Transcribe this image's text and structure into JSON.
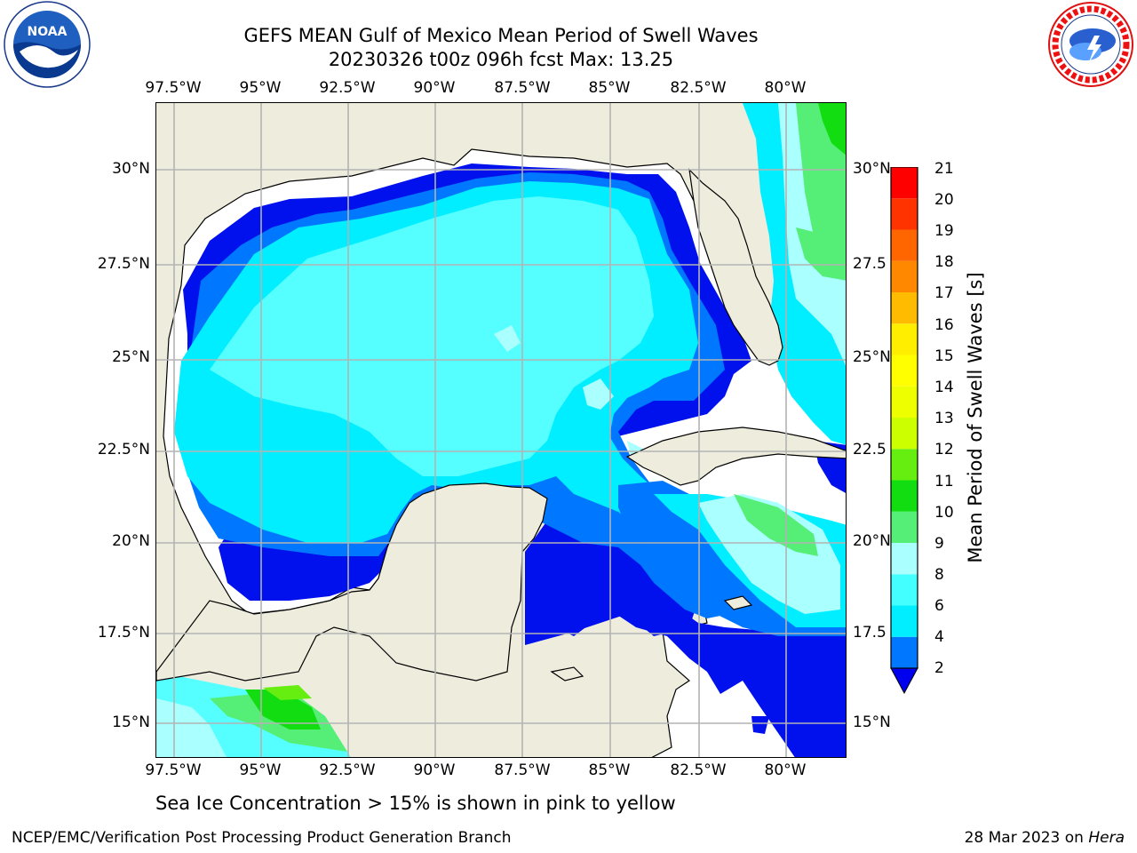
{
  "header": {
    "title": "GEFS MEAN Gulf of Mexico Mean Period of Swell Waves",
    "subtitle": "20230326 t00z 096h fcst   Max: 13.25"
  },
  "logos": {
    "left": {
      "text": "NOAA",
      "icon": "noaa-logo-icon",
      "ring_text": "NATIONAL OCEANIC AND ATMOSPHERIC ADMINISTRATION · U.S. DEPARTMENT OF COMMERCE"
    },
    "right": {
      "icon": "nws-logo-icon",
      "ring_text": "NATIONAL WEATHER SERVICE"
    }
  },
  "map": {
    "longitude_ticks": [
      "97.5°W",
      "95°W",
      "92.5°W",
      "90°W",
      "87.5°W",
      "85°W",
      "82.5°W",
      "80°W"
    ],
    "latitude_ticks_left": [
      "30°N",
      "27.5°N",
      "25°N",
      "22.5°N",
      "20°N",
      "17.5°N",
      "15°N"
    ],
    "latitude_ticks_right": [
      "30°N",
      "27.5",
      "25°N",
      "22.5",
      "20°N",
      "17.5",
      "15°N"
    ],
    "gridlines": true,
    "colors": {
      "land": "#eeecdc",
      "ocean_no_data": "#ffffff",
      "grid": "#b3b3b3",
      "coastline": "#000000"
    }
  },
  "colorbar": {
    "title": "Mean Period of Swell Waves [s]",
    "tick_labels": [
      "21",
      "20",
      "19",
      "18",
      "17",
      "16",
      "15",
      "14",
      "13",
      "12",
      "11",
      "10",
      "9",
      "8",
      "6",
      "4",
      "2"
    ],
    "bins": [
      {
        "from": 2,
        "to": 4,
        "color": "#0077ff"
      },
      {
        "from": 4,
        "to": 6,
        "color": "#00eeff"
      },
      {
        "from": 6,
        "to": 8,
        "color": "#44ffff"
      },
      {
        "from": 8,
        "to": 9,
        "color": "#aaffff"
      },
      {
        "from": 9,
        "to": 10,
        "color": "#55ee77"
      },
      {
        "from": 10,
        "to": 11,
        "color": "#11dd11"
      },
      {
        "from": 11,
        "to": 12,
        "color": "#66ee11"
      },
      {
        "from": 12,
        "to": 13,
        "color": "#ccff00"
      },
      {
        "from": 13,
        "to": 14,
        "color": "#eeff00"
      },
      {
        "from": 14,
        "to": 15,
        "color": "#ffff00"
      },
      {
        "from": 15,
        "to": 16,
        "color": "#ffee00"
      },
      {
        "from": 16,
        "to": 17,
        "color": "#ffbb00"
      },
      {
        "from": 17,
        "to": 18,
        "color": "#ff8800"
      },
      {
        "from": 18,
        "to": 19,
        "color": "#ff6600"
      },
      {
        "from": 19,
        "to": 20,
        "color": "#ff3300"
      },
      {
        "from": 20,
        "to": 21,
        "color": "#ff0000"
      }
    ],
    "under_color": "#0000ee",
    "extend": "min"
  },
  "field_colors": {
    "deep_blue": "#0011ee",
    "blue": "#0077ff",
    "cyan": "#00eeff",
    "light_cyan": "#55ffff",
    "pale_cyan": "#aaffff",
    "green": "#55ee77",
    "bright_green": "#11dd11"
  },
  "note": "Sea Ice Concentration > 15% is shown in pink to yellow",
  "footer": {
    "left": "NCEP/EMC/Verification Post Processing Product Generation Branch",
    "date": "28 Mar 2023 on",
    "host": "Hera"
  }
}
